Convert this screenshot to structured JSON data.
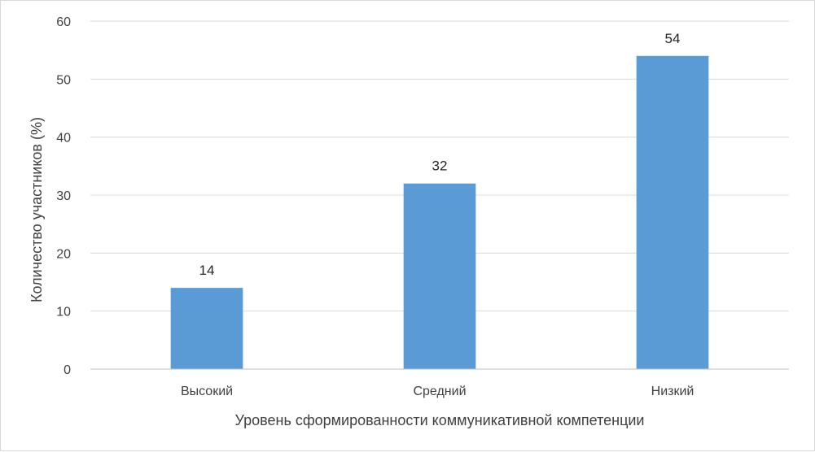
{
  "chart_data": {
    "type": "bar",
    "categories": [
      "Высокий",
      "Средний",
      "Низкий"
    ],
    "values": [
      14,
      32,
      54
    ],
    "data_labels": [
      "14",
      "32",
      "54"
    ],
    "xlabel": "Уровень сформированности коммуникативной компетенции",
    "ylabel": "Количество участников (%)",
    "ylim": [
      0,
      60
    ],
    "yticks": [
      0,
      10,
      20,
      30,
      40,
      50,
      60
    ],
    "ytick_labels": [
      "0",
      "10",
      "20",
      "30",
      "40",
      "50",
      "60"
    ],
    "grid": true,
    "legend": "none",
    "colors": {
      "bar": "#5b9bd5",
      "grid": "#d9d9d9",
      "axis": "#bfbfbf"
    }
  }
}
